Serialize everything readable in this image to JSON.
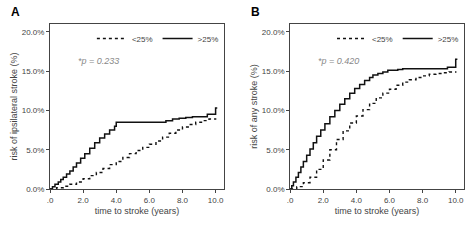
{
  "chart_data": [
    {
      "type": "step",
      "title": "A",
      "x_label": "time to stroke (years)",
      "y_label": "risk of ipsilateral stroke (%)",
      "xlim": [
        0,
        10.5
      ],
      "ylim": [
        0,
        21
      ],
      "xticks": [
        {
          "value": 0,
          "label": ".0"
        },
        {
          "value": 2.0,
          "label": "2.0"
        },
        {
          "value": 4.0,
          "label": "4.0"
        },
        {
          "value": 6.0,
          "label": "6.0"
        },
        {
          "value": 8.0,
          "label": "8.0"
        },
        {
          "value": 10.0,
          "label": "10.0"
        }
      ],
      "yticks": [
        {
          "value": 0.0,
          "label": "0.0%"
        },
        {
          "value": 5.0,
          "label": "5.0%"
        },
        {
          "value": 10.0,
          "label": "10.0%"
        },
        {
          "value": 15.0,
          "label": "15.0%"
        },
        {
          "value": 20.0,
          "label": "20.0%"
        }
      ],
      "grid": false,
      "legend": "upper right",
      "annotations": [
        {
          "text": "*p = 0.233",
          "color": "#888888"
        }
      ],
      "series": [
        {
          "name": ">25%",
          "line_style": "solid",
          "color": "#111111",
          "x": [
            0,
            0.15,
            0.3,
            0.5,
            0.65,
            0.8,
            1.0,
            1.2,
            1.4,
            1.6,
            1.85,
            2.1,
            2.4,
            2.7,
            3.0,
            3.3,
            3.6,
            3.9,
            4.0,
            4.3,
            4.7,
            5.0,
            5.3,
            5.6,
            6.0,
            6.3,
            6.7,
            7.0,
            7.4,
            7.8,
            8.2,
            8.6,
            9.0,
            9.4,
            9.5,
            9.6,
            9.7,
            10.0,
            10.0,
            10.1
          ],
          "values": [
            0,
            0.3,
            0.6,
            0.9,
            1.2,
            1.5,
            1.9,
            2.3,
            2.8,
            3.3,
            3.9,
            4.5,
            5.2,
            5.9,
            6.5,
            7.0,
            7.5,
            8.0,
            8.5,
            8.5,
            8.5,
            8.5,
            8.5,
            8.5,
            8.5,
            8.5,
            8.5,
            8.7,
            8.9,
            9.0,
            9.1,
            9.2,
            9.2,
            9.2,
            9.5,
            9.5,
            9.5,
            9.5,
            10.3,
            10.3
          ]
        },
        {
          "name": "<25%",
          "line_style": "dotted",
          "color": "#111111",
          "x": [
            0,
            0.4,
            0.8,
            1.2,
            1.6,
            2.0,
            2.4,
            2.8,
            3.2,
            3.6,
            4.0,
            4.4,
            4.8,
            5.2,
            5.6,
            6.0,
            6.4,
            6.8,
            7.2,
            7.6,
            8.0,
            8.4,
            8.8,
            9.2,
            9.6,
            10.0
          ],
          "values": [
            0,
            0.15,
            0.35,
            0.6,
            0.9,
            1.3,
            1.7,
            2.1,
            2.6,
            3.1,
            3.5,
            4.0,
            4.5,
            4.9,
            5.3,
            5.7,
            6.1,
            6.6,
            7.1,
            7.5,
            7.9,
            8.2,
            8.5,
            8.7,
            8.9,
            9.0
          ]
        }
      ]
    },
    {
      "type": "step",
      "title": "B",
      "x_label": "time to stroke (years)",
      "y_label": "risk of any stroke (%)",
      "xlim": [
        0,
        10.5
      ],
      "ylim": [
        0,
        21
      ],
      "xticks": [
        {
          "value": 0,
          "label": ".0"
        },
        {
          "value": 2.0,
          "label": "2.0"
        },
        {
          "value": 4.0,
          "label": "4.0"
        },
        {
          "value": 6.0,
          "label": "6.0"
        },
        {
          "value": 8.0,
          "label": "8.0"
        },
        {
          "value": 10.0,
          "label": "10.0"
        }
      ],
      "yticks": [
        {
          "value": 0.0,
          "label": "0.0%"
        },
        {
          "value": 5.0,
          "label": "5.0%"
        },
        {
          "value": 10.0,
          "label": "10.0%"
        },
        {
          "value": 15.0,
          "label": "15.0%"
        },
        {
          "value": 20.0,
          "label": "20.0%"
        }
      ],
      "grid": false,
      "legend": "upper right",
      "annotations": [
        {
          "text": "*p = 0.420",
          "color": "#888888"
        }
      ],
      "series": [
        {
          "name": ">25%",
          "line_style": "solid",
          "color": "#111111",
          "x": [
            0,
            0.1,
            0.2,
            0.35,
            0.5,
            0.65,
            0.8,
            1.0,
            1.2,
            1.4,
            1.6,
            1.85,
            2.1,
            2.4,
            2.7,
            3.0,
            3.3,
            3.6,
            3.9,
            4.2,
            4.5,
            4.8,
            5.0,
            5.3,
            5.6,
            5.9,
            6.0,
            6.2,
            6.5,
            6.8,
            7.0,
            7.3,
            7.6,
            8.0,
            8.3,
            8.7,
            9.0,
            9.3,
            9.5,
            9.5,
            10.0,
            10.0,
            10.1
          ],
          "values": [
            0,
            0.4,
            0.9,
            1.5,
            2.1,
            2.8,
            3.5,
            4.3,
            5.1,
            5.9,
            6.7,
            7.5,
            8.3,
            9.2,
            10.0,
            10.8,
            11.5,
            12.2,
            12.8,
            13.3,
            13.8,
            14.2,
            14.5,
            14.7,
            14.9,
            15.1,
            15.1,
            15.1,
            15.2,
            15.3,
            15.3,
            15.3,
            15.3,
            15.3,
            15.3,
            15.3,
            15.3,
            15.3,
            15.5,
            15.5,
            15.5,
            16.5,
            16.5
          ]
        },
        {
          "name": "<25%",
          "line_style": "dotted",
          "color": "#111111",
          "x": [
            0,
            0.4,
            0.8,
            1.2,
            1.6,
            2.0,
            2.4,
            2.8,
            3.2,
            3.6,
            4.0,
            4.4,
            4.8,
            5.2,
            5.6,
            6.0,
            6.4,
            6.8,
            7.2,
            7.6,
            8.0,
            8.4,
            8.8,
            9.2,
            9.6,
            10.0
          ],
          "values": [
            0,
            0.3,
            0.8,
            1.5,
            2.5,
            3.7,
            5.0,
            6.3,
            7.4,
            8.4,
            9.3,
            10.1,
            10.9,
            11.6,
            12.2,
            12.7,
            13.2,
            13.6,
            13.9,
            14.2,
            14.4,
            14.6,
            14.7,
            14.8,
            14.9,
            14.8
          ]
        }
      ]
    }
  ]
}
